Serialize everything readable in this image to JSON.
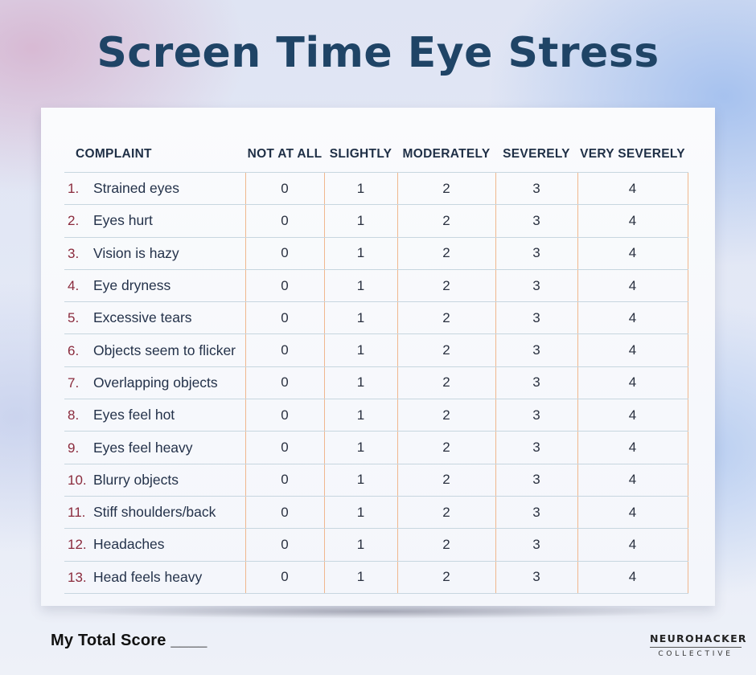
{
  "title": "Screen Time Eye Stress",
  "table": {
    "headers": {
      "complaint": "COMPLAINT",
      "not_at_all": "NOT AT ALL",
      "slightly": "SLIGHTLY",
      "moderately": "MODERATELY",
      "severely": "SEVERELY",
      "very_severely": "VERY SEVERELY"
    },
    "rows": [
      {
        "num": "1.",
        "label": "Strained eyes",
        "scores": [
          "0",
          "1",
          "2",
          "3",
          "4"
        ]
      },
      {
        "num": "2.",
        "label": "Eyes hurt",
        "scores": [
          "0",
          "1",
          "2",
          "3",
          "4"
        ]
      },
      {
        "num": "3.",
        "label": "Vision is hazy",
        "scores": [
          "0",
          "1",
          "2",
          "3",
          "4"
        ]
      },
      {
        "num": "4.",
        "label": "Eye dryness",
        "scores": [
          "0",
          "1",
          "2",
          "3",
          "4"
        ]
      },
      {
        "num": "5.",
        "label": "Excessive tears",
        "scores": [
          "0",
          "1",
          "2",
          "3",
          "4"
        ]
      },
      {
        "num": "6.",
        "label": "Objects seem to flicker",
        "scores": [
          "0",
          "1",
          "2",
          "3",
          "4"
        ]
      },
      {
        "num": "7.",
        "label": "Overlapping objects",
        "scores": [
          "0",
          "1",
          "2",
          "3",
          "4"
        ]
      },
      {
        "num": "8.",
        "label": "Eyes feel hot",
        "scores": [
          "0",
          "1",
          "2",
          "3",
          "4"
        ]
      },
      {
        "num": "9.",
        "label": "Eyes feel heavy",
        "scores": [
          "0",
          "1",
          "2",
          "3",
          "4"
        ]
      },
      {
        "num": "10.",
        "label": "Blurry objects",
        "scores": [
          "0",
          "1",
          "2",
          "3",
          "4"
        ]
      },
      {
        "num": "11.",
        "label": "Stiff shoulders/back",
        "scores": [
          "0",
          "1",
          "2",
          "3",
          "4"
        ]
      },
      {
        "num": "12.",
        "label": "Headaches",
        "scores": [
          "0",
          "1",
          "2",
          "3",
          "4"
        ]
      },
      {
        "num": "13.",
        "label": "Head feels heavy",
        "scores": [
          "0",
          "1",
          "2",
          "3",
          "4"
        ]
      }
    ]
  },
  "footer": {
    "total_score": "My Total Score ____",
    "brand_name": "NEUROHACKER",
    "brand_sub": "COLLECTIVE"
  },
  "colors": {
    "title": "#1f4466",
    "row_number": "#8a2a3c",
    "column_divider": "#f0b78e",
    "row_divider": "#c7d6df"
  }
}
